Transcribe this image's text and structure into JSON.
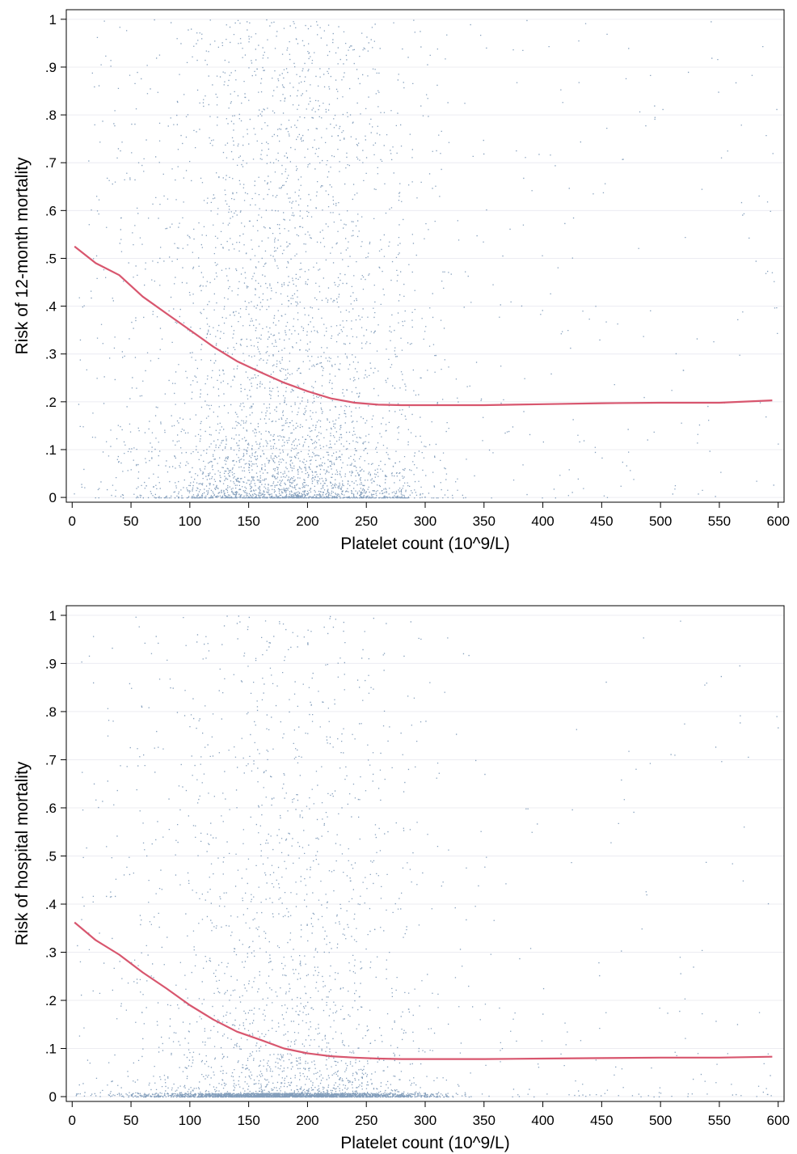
{
  "chart_data": [
    {
      "type": "scatter",
      "title": "",
      "xlabel": "Platelet count (10^9/L)",
      "ylabel": "Risk of 12-month mortality",
      "xlim": [
        -5,
        605
      ],
      "ylim": [
        -0.01,
        1.02
      ],
      "x_ticks": [
        "0",
        "50",
        "100",
        "150",
        "200",
        "250",
        "300",
        "350",
        "400",
        "450",
        "500",
        "550",
        "600"
      ],
      "y_ticks": [
        "0",
        ".1",
        ".2",
        ".3",
        ".4",
        ".5",
        ".6",
        ".7",
        ".8",
        ".9",
        "1"
      ],
      "grid": "horizontal",
      "colors": {
        "points": "#5b7fa6",
        "smooth": "#d8566e",
        "grid": "#ececf2"
      },
      "series": [
        {
          "kind": "scatter-cloud",
          "note_values": "individual points too dense to read; density concentrated at x 50-300, y 0-0.3",
          "x_range": [
            0,
            600
          ],
          "y_range": [
            0,
            1
          ]
        },
        {
          "kind": "smoothed-line",
          "x": [
            2,
            20,
            40,
            60,
            80,
            100,
            120,
            140,
            160,
            180,
            200,
            220,
            240,
            260,
            280,
            300,
            350,
            400,
            450,
            500,
            550,
            595
          ],
          "y": [
            0.525,
            0.49,
            0.465,
            0.42,
            0.385,
            0.35,
            0.315,
            0.285,
            0.262,
            0.24,
            0.222,
            0.207,
            0.198,
            0.194,
            0.193,
            0.193,
            0.193,
            0.195,
            0.197,
            0.198,
            0.198,
            0.203
          ]
        }
      ]
    },
    {
      "type": "scatter",
      "title": "",
      "xlabel": "Platelet count (10^9/L)",
      "ylabel": "Risk of hospital mortality",
      "xlim": [
        -5,
        605
      ],
      "ylim": [
        -0.01,
        1.02
      ],
      "x_ticks": [
        "0",
        "50",
        "100",
        "150",
        "200",
        "250",
        "300",
        "350",
        "400",
        "450",
        "500",
        "550",
        "600"
      ],
      "y_ticks": [
        "0",
        ".1",
        ".2",
        ".3",
        ".4",
        ".5",
        ".6",
        ".7",
        ".8",
        ".9",
        "1"
      ],
      "grid": "horizontal",
      "colors": {
        "points": "#5b7fa6",
        "smooth": "#d8566e",
        "grid": "#ececf2"
      },
      "series": [
        {
          "kind": "scatter-cloud",
          "note_values": "individual points too dense to read; heavy band near y 0, scattered points up to y 1",
          "x_range": [
            0,
            600
          ],
          "y_range": [
            0,
            1
          ]
        },
        {
          "kind": "smoothed-line",
          "x": [
            2,
            20,
            40,
            60,
            80,
            100,
            120,
            140,
            160,
            180,
            200,
            220,
            240,
            260,
            280,
            300,
            350,
            400,
            450,
            500,
            550,
            595
          ],
          "y": [
            0.362,
            0.325,
            0.295,
            0.258,
            0.225,
            0.19,
            0.16,
            0.135,
            0.118,
            0.1,
            0.09,
            0.084,
            0.081,
            0.079,
            0.078,
            0.078,
            0.078,
            0.079,
            0.08,
            0.081,
            0.081,
            0.083
          ]
        }
      ]
    }
  ]
}
